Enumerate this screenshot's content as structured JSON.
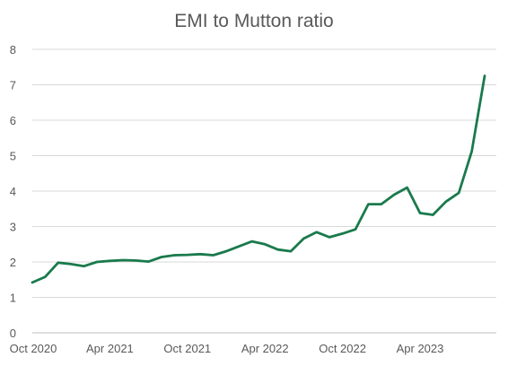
{
  "chart_data": {
    "type": "line",
    "title": "EMI to Mutton ratio",
    "xlabel": "",
    "ylabel": "",
    "ylim": [
      0,
      8
    ],
    "yticks": [
      "0",
      "1",
      "2",
      "3",
      "4",
      "5",
      "6",
      "7",
      "8"
    ],
    "xtick_labels": [
      "Oct 2020",
      "Apr 2021",
      "Oct 2021",
      "Apr 2022",
      "Oct 2022",
      "Apr 2023"
    ],
    "grid": true,
    "legend": "none",
    "series": [
      {
        "color": "#1a7a4c",
        "x": [
          "2020-10",
          "2020-11",
          "2020-12",
          "2021-01",
          "2021-02",
          "2021-03",
          "2021-04",
          "2021-05",
          "2021-06",
          "2021-07",
          "2021-08",
          "2021-09",
          "2021-10",
          "2021-11",
          "2021-12",
          "2022-01",
          "2022-02",
          "2022-03",
          "2022-04",
          "2022-05",
          "2022-06",
          "2022-07",
          "2022-08",
          "2022-09",
          "2022-10",
          "2022-11",
          "2022-12",
          "2023-01",
          "2023-02",
          "2023-03",
          "2023-04",
          "2023-05",
          "2023-06",
          "2023-07",
          "2023-08",
          "2023-09"
        ],
        "values": [
          1.42,
          1.58,
          1.98,
          1.94,
          1.88,
          2.0,
          2.03,
          2.05,
          2.04,
          2.01,
          2.14,
          2.19,
          2.2,
          2.22,
          2.19,
          2.3,
          2.44,
          2.58,
          2.5,
          2.35,
          2.3,
          2.66,
          2.84,
          2.7,
          2.8,
          2.92,
          3.63,
          3.63,
          3.9,
          4.1,
          3.38,
          3.33,
          3.7,
          3.95,
          5.12,
          7.25
        ]
      }
    ]
  }
}
